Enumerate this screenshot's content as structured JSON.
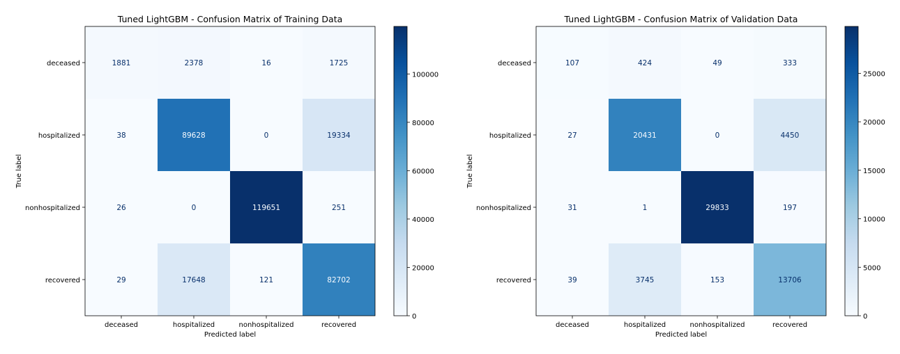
{
  "chart_data": [
    {
      "type": "heatmap",
      "title": "Tuned LightGBM - Confusion Matrix of Training Data",
      "xlabel": "Predicted label",
      "ylabel": "True label",
      "x_categories": [
        "deceased",
        "hospitalized",
        "nonhospitalized",
        "recovered"
      ],
      "y_categories": [
        "deceased",
        "hospitalized",
        "nonhospitalized",
        "recovered"
      ],
      "values": [
        [
          1881,
          2378,
          16,
          1725
        ],
        [
          38,
          89628,
          0,
          19334
        ],
        [
          26,
          0,
          119651,
          251
        ],
        [
          29,
          17648,
          121,
          82702
        ]
      ],
      "colorbar": {
        "ticks": [
          0,
          20000,
          40000,
          60000,
          80000,
          100000
        ],
        "range": [
          0,
          119651
        ],
        "colormap": "Blues"
      }
    },
    {
      "type": "heatmap",
      "title": "Tuned LightGBM - Confusion Matrix of Validation Data",
      "xlabel": "Predicted label",
      "ylabel": "True label",
      "x_categories": [
        "deceased",
        "hospitalized",
        "nonhospitalized",
        "recovered"
      ],
      "y_categories": [
        "deceased",
        "hospitalized",
        "nonhospitalized",
        "recovered"
      ],
      "values": [
        [
          107,
          424,
          49,
          333
        ],
        [
          27,
          20431,
          0,
          4450
        ],
        [
          31,
          1,
          29833,
          197
        ],
        [
          39,
          3745,
          153,
          13706
        ]
      ],
      "colorbar": {
        "ticks": [
          0,
          5000,
          10000,
          15000,
          20000,
          25000
        ],
        "range": [
          0,
          29833
        ],
        "colormap": "Blues"
      }
    }
  ]
}
